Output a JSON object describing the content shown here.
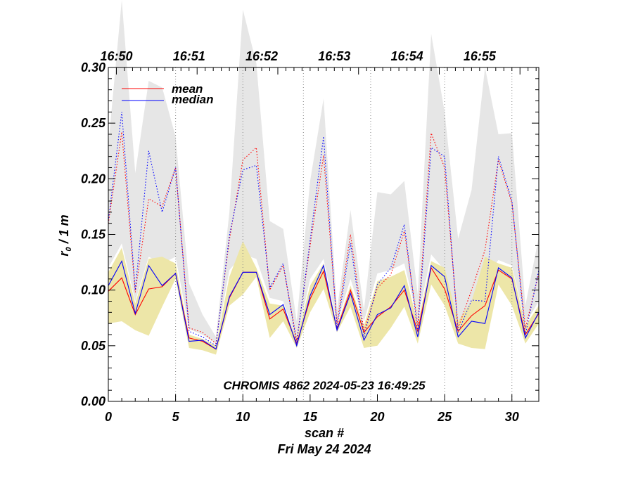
{
  "chart_data": {
    "type": "line",
    "title": "CHROMIS 4862 2024-05-23 16:49:25",
    "xlabel": "scan #",
    "date_label": "Fri May 24 2024",
    "ylabel": "r",
    "ylabel_sub": "0",
    "ylabel_unit": " / 1 m",
    "xlim": [
      0,
      32
    ],
    "ylim": [
      0.0,
      0.3
    ],
    "x_ticks": [
      0,
      5,
      10,
      15,
      20,
      25,
      30
    ],
    "x_tick_labels": [
      "0",
      "5",
      "10",
      "15",
      "20",
      "25",
      "30"
    ],
    "y_ticks": [
      0.0,
      0.05,
      0.1,
      0.15,
      0.2,
      0.25,
      0.3
    ],
    "y_tick_labels": [
      "0.00",
      "0.05",
      "0.10",
      "0.15",
      "0.20",
      "0.25",
      "0.30"
    ],
    "time_ticks": [
      {
        "x": 0.6,
        "label": "16:50"
      },
      {
        "x": 6.0,
        "label": "16:51"
      },
      {
        "x": 11.4,
        "label": "16:52"
      },
      {
        "x": 16.8,
        "label": "16:53"
      },
      {
        "x": 22.2,
        "label": "16:54"
      },
      {
        "x": 27.6,
        "label": "16:55"
      }
    ],
    "minute_lines": [
      5,
      10,
      14.5,
      19.5,
      25,
      30
    ],
    "x": [
      0,
      1,
      2,
      3,
      4,
      5,
      6,
      7,
      8,
      9,
      10,
      11,
      12,
      13,
      14,
      15,
      16,
      17,
      18,
      19,
      20,
      21,
      22,
      23,
      24,
      25,
      26,
      27,
      28,
      29,
      30,
      31,
      32
    ],
    "series": [
      {
        "name": "mean",
        "color": "#ff0000",
        "style": "solid",
        "values": [
          0.099,
          0.111,
          0.078,
          0.101,
          0.103,
          0.115,
          0.057,
          0.054,
          0.047,
          0.093,
          0.116,
          0.116,
          0.074,
          0.083,
          0.052,
          0.092,
          0.117,
          0.065,
          0.1,
          0.062,
          0.076,
          0.085,
          0.1,
          0.063,
          0.12,
          0.101,
          0.063,
          0.077,
          0.086,
          0.118,
          0.11,
          0.06,
          0.079
        ]
      },
      {
        "name": "median",
        "color": "#0000ff",
        "style": "solid",
        "values": [
          0.104,
          0.126,
          0.079,
          0.122,
          0.104,
          0.115,
          0.054,
          0.055,
          0.047,
          0.094,
          0.116,
          0.116,
          0.078,
          0.087,
          0.05,
          0.095,
          0.122,
          0.064,
          0.097,
          0.055,
          0.078,
          0.084,
          0.104,
          0.058,
          0.122,
          0.112,
          0.058,
          0.072,
          0.07,
          0.12,
          0.111,
          0.057,
          0.08
        ]
      },
      {
        "name": "mean (upper)",
        "color": "#ff0000",
        "style": "dotted",
        "values": [
          0.16,
          0.242,
          0.098,
          0.182,
          0.175,
          0.21,
          0.066,
          0.062,
          0.052,
          0.145,
          0.217,
          0.228,
          0.1,
          0.122,
          0.055,
          0.14,
          0.221,
          0.07,
          0.15,
          0.063,
          0.102,
          0.114,
          0.153,
          0.069,
          0.241,
          0.21,
          0.066,
          0.1,
          0.136,
          0.217,
          0.178,
          0.066,
          0.115
        ]
      },
      {
        "name": "median (upper)",
        "color": "#0000ff",
        "style": "dotted",
        "values": [
          0.162,
          0.26,
          0.1,
          0.225,
          0.17,
          0.21,
          0.063,
          0.058,
          0.05,
          0.149,
          0.208,
          0.212,
          0.102,
          0.124,
          0.052,
          0.145,
          0.238,
          0.066,
          0.142,
          0.058,
          0.105,
          0.12,
          0.159,
          0.063,
          0.228,
          0.22,
          0.062,
          0.091,
          0.09,
          0.22,
          0.18,
          0.06,
          0.118
        ]
      }
    ],
    "bands": [
      {
        "name": "upper spread",
        "color": "#e6e6e6",
        "lower": [
          0.12,
          0.142,
          0.09,
          0.13,
          0.124,
          0.13,
          0.065,
          0.06,
          0.052,
          0.118,
          0.132,
          0.128,
          0.093,
          0.09,
          0.055,
          0.11,
          0.128,
          0.07,
          0.11,
          0.072,
          0.115,
          0.118,
          0.124,
          0.073,
          0.132,
          0.118,
          0.068,
          0.083,
          0.112,
          0.127,
          0.122,
          0.07,
          0.09
        ],
        "upper": [
          0.23,
          0.38,
          0.205,
          0.288,
          0.282,
          0.238,
          0.106,
          0.078,
          0.058,
          0.17,
          0.352,
          0.304,
          0.162,
          0.155,
          0.072,
          0.198,
          0.272,
          0.082,
          0.172,
          0.082,
          0.188,
          0.186,
          0.198,
          0.096,
          0.33,
          0.26,
          0.146,
          0.19,
          0.3,
          0.24,
          0.241,
          0.086,
          0.148
        ]
      },
      {
        "name": "lower spread",
        "color": "#ede6a8",
        "lower": [
          0.07,
          0.072,
          0.064,
          0.059,
          0.085,
          0.11,
          0.048,
          0.046,
          0.042,
          0.086,
          0.096,
          0.112,
          0.057,
          0.072,
          0.048,
          0.08,
          0.101,
          0.062,
          0.085,
          0.048,
          0.05,
          0.066,
          0.085,
          0.052,
          0.105,
          0.086,
          0.052,
          0.048,
          0.047,
          0.105,
          0.086,
          0.052,
          0.07
        ]
      },
      {
        "name": "lower spread (top)",
        "color": "#ede6a8",
        "upper": [
          0.116,
          0.138,
          0.088,
          0.128,
          0.13,
          0.124,
          0.06,
          0.056,
          0.05,
          0.112,
          0.144,
          0.12,
          0.088,
          0.086,
          0.056,
          0.104,
          0.124,
          0.068,
          0.104,
          0.068,
          0.108,
          0.112,
          0.118,
          0.07,
          0.126,
          0.12,
          0.072,
          0.09,
          0.13,
          0.124,
          0.12,
          0.068,
          0.086
        ]
      }
    ],
    "legend": {
      "position": "top-left",
      "entries": [
        {
          "label": "mean",
          "color": "#ff0000"
        },
        {
          "label": "median",
          "color": "#0000ff"
        }
      ]
    }
  }
}
